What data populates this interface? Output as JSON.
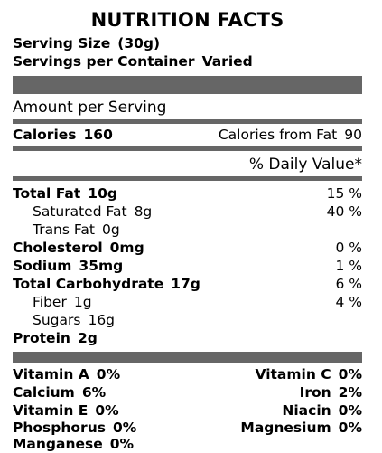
{
  "title": "NUTRITION FACTS",
  "serving": {
    "size_label": "Serving Size",
    "size_value": "(30g)",
    "per_container_label": "Servings per Container",
    "per_container_value": "Varied"
  },
  "amount_per_serving": "Amount per Serving",
  "calories": {
    "label": "Calories",
    "value": "160",
    "from_fat_label": "Calories from Fat",
    "from_fat_value": "90"
  },
  "daily_value_header": "% Daily Value*",
  "nutrients": [
    {
      "label": "Total Fat",
      "amount": "10g",
      "dv": "15 %"
    },
    {
      "label": "Saturated Fat",
      "amount": "8g",
      "dv": "40 %"
    },
    {
      "label": "Trans Fat",
      "amount": "0g",
      "dv": ""
    },
    {
      "label": "Cholesterol",
      "amount": "0mg",
      "dv": "0 %"
    },
    {
      "label": "Sodium",
      "amount": "35mg",
      "dv": "1 %"
    },
    {
      "label": "Total Carbohydrate",
      "amount": "17g",
      "dv": "6 %"
    },
    {
      "label": "Fiber",
      "amount": "1g",
      "dv": "4 %"
    },
    {
      "label": "Sugars",
      "amount": "16g",
      "dv": ""
    },
    {
      "label": "Protein",
      "amount": "2g",
      "dv": ""
    }
  ],
  "vitamins": [
    {
      "left_label": "Vitamin A",
      "left_value": "0%",
      "right_label": "Vitamin C",
      "right_value": "0%"
    },
    {
      "left_label": "Calcium",
      "left_value": "6%",
      "right_label": "Iron",
      "right_value": "2%"
    },
    {
      "left_label": "Vitamin E",
      "left_value": "0%",
      "right_label": "Niacin",
      "right_value": "0%"
    },
    {
      "left_label": "Phosphorus",
      "left_value": "0%",
      "right_label": "Magnesium",
      "right_value": "0%"
    },
    {
      "left_label": "Manganese",
      "left_value": "0%",
      "right_label": "",
      "right_value": ""
    }
  ],
  "colors": {
    "rule": "#666666",
    "text": "#000000",
    "background": "#ffffff"
  }
}
